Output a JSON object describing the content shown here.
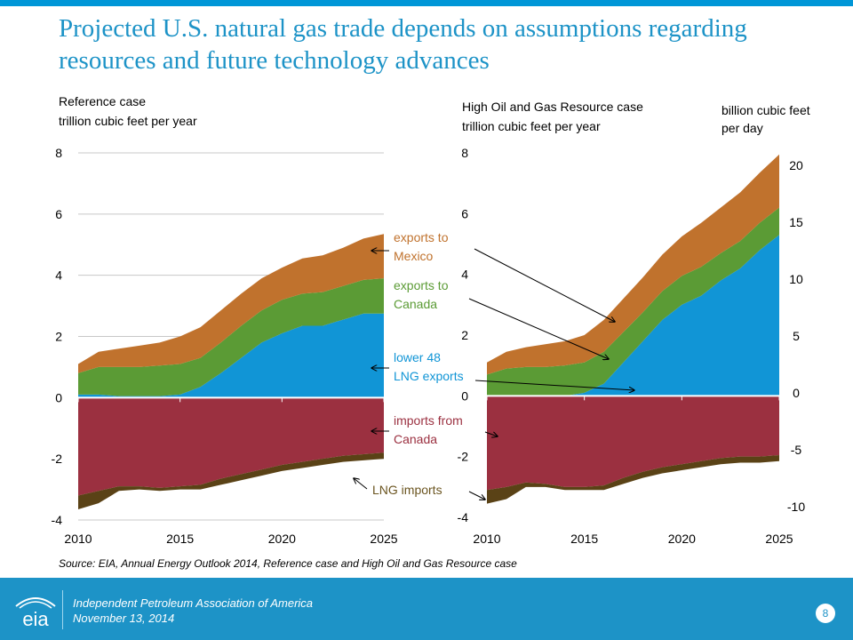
{
  "title": "Projected U.S. natural gas trade depends on assumptions regarding resources and future technology advances",
  "source": "Source:  EIA, Annual Energy Outlook 2014, Reference case and High Oil and Gas Resource case",
  "footer": {
    "organization": "Independent Petroleum Association of America",
    "date": "November 13, 2014",
    "page_number": "8",
    "logo_text": "eia"
  },
  "colors": {
    "accent": "#1d93c7",
    "exports_to_mexico": "#c0722d",
    "exports_to_canada": "#5b9b35",
    "lower_48_lng_exports": "#1195d6",
    "imports_from_canada": "#9b3040",
    "lng_imports": "#5a4216",
    "label_orange": "#c0722d",
    "label_green": "#5b9b35",
    "label_blue": "#1195d6",
    "label_red": "#9b3040",
    "label_brown": "#6b5520"
  },
  "annotations": [
    {
      "key": "exports_to_mexico",
      "line1": "exports to",
      "line2": "Mexico"
    },
    {
      "key": "exports_to_canada",
      "line1": "exports to",
      "line2": "Canada"
    },
    {
      "key": "lower_48_lng_exports",
      "line1": "lower 48",
      "line2": "LNG exports"
    },
    {
      "key": "imports_from_canada",
      "line1": "imports from",
      "line2": "Canada"
    },
    {
      "key": "lng_imports",
      "line1": "LNG imports",
      "line2": ""
    }
  ],
  "chart_data": [
    {
      "type": "area",
      "title": "Reference case",
      "ylabel": "trillion cubic feet per year",
      "x": [
        2010,
        2011,
        2012,
        2013,
        2014,
        2015,
        2016,
        2017,
        2018,
        2019,
        2020,
        2021,
        2022,
        2023,
        2024,
        2025
      ],
      "xticks": [
        2010,
        2015,
        2020,
        2025
      ],
      "yticks": [
        -4,
        -2,
        0,
        2,
        4,
        6,
        8
      ],
      "ylim": [
        -4,
        8
      ],
      "grid": true,
      "series": [
        {
          "name": "lower 48 LNG exports",
          "values": [
            0.1,
            0.1,
            0.05,
            0.05,
            0.05,
            0.1,
            0.35,
            0.8,
            1.3,
            1.8,
            2.1,
            2.35,
            2.35,
            2.55,
            2.75,
            2.75
          ]
        },
        {
          "name": "exports to Canada",
          "values": [
            0.7,
            0.9,
            0.95,
            0.95,
            1.0,
            1.0,
            0.95,
            1.0,
            1.05,
            1.05,
            1.1,
            1.05,
            1.1,
            1.1,
            1.1,
            1.15
          ]
        },
        {
          "name": "exports to Mexico",
          "values": [
            0.3,
            0.5,
            0.6,
            0.7,
            0.75,
            0.9,
            1.0,
            1.05,
            1.05,
            1.05,
            1.05,
            1.15,
            1.2,
            1.25,
            1.35,
            1.45
          ]
        },
        {
          "name": "imports from Canada",
          "values": [
            -3.2,
            -3.05,
            -2.9,
            -2.9,
            -2.95,
            -2.9,
            -2.85,
            -2.65,
            -2.5,
            -2.35,
            -2.2,
            -2.1,
            -2.0,
            -1.9,
            -1.85,
            -1.8
          ]
        },
        {
          "name": "LNG imports",
          "values": [
            -0.45,
            -0.4,
            -0.15,
            -0.1,
            -0.1,
            -0.1,
            -0.15,
            -0.2,
            -0.2,
            -0.2,
            -0.2,
            -0.2,
            -0.2,
            -0.2,
            -0.2,
            -0.2
          ]
        }
      ]
    },
    {
      "type": "area",
      "title": "High Oil and Gas Resource case",
      "ylabel": "trillion cubic feet per year",
      "y2label": "billion cubic feet per day",
      "x": [
        2010,
        2011,
        2012,
        2013,
        2014,
        2015,
        2016,
        2017,
        2018,
        2019,
        2020,
        2021,
        2022,
        2023,
        2024,
        2025
      ],
      "xticks": [
        2010,
        2015,
        2020,
        2025
      ],
      "yticks": [
        -4,
        -2,
        0,
        2,
        4,
        6,
        8
      ],
      "y2ticks": [
        -10,
        -5,
        0,
        5,
        10,
        15,
        20
      ],
      "ylim": [
        -4,
        8
      ],
      "grid": false,
      "series": [
        {
          "name": "lower 48 LNG exports",
          "values": [
            0.0,
            0.0,
            0.0,
            0.0,
            0.0,
            0.1,
            0.4,
            1.1,
            1.8,
            2.5,
            3.0,
            3.3,
            3.8,
            4.2,
            4.8,
            5.3
          ]
        },
        {
          "name": "exports to Canada",
          "values": [
            0.7,
            0.9,
            0.95,
            0.95,
            1.0,
            1.0,
            1.05,
            1.0,
            0.95,
            0.95,
            0.95,
            0.95,
            0.9,
            0.9,
            0.9,
            0.9
          ]
        },
        {
          "name": "exports to Mexico",
          "values": [
            0.4,
            0.55,
            0.65,
            0.75,
            0.8,
            0.9,
            1.05,
            1.1,
            1.15,
            1.2,
            1.3,
            1.45,
            1.5,
            1.6,
            1.65,
            1.75
          ]
        },
        {
          "name": "imports from Canada",
          "values": [
            -3.1,
            -3.0,
            -2.85,
            -2.9,
            -3.0,
            -3.0,
            -2.95,
            -2.7,
            -2.5,
            -2.35,
            -2.25,
            -2.15,
            -2.05,
            -2.0,
            -2.0,
            -1.95
          ]
        },
        {
          "name": "LNG imports",
          "values": [
            -0.45,
            -0.4,
            -0.15,
            -0.1,
            -0.1,
            -0.1,
            -0.15,
            -0.2,
            -0.2,
            -0.2,
            -0.2,
            -0.2,
            -0.2,
            -0.2,
            -0.2,
            -0.2
          ]
        }
      ]
    }
  ]
}
